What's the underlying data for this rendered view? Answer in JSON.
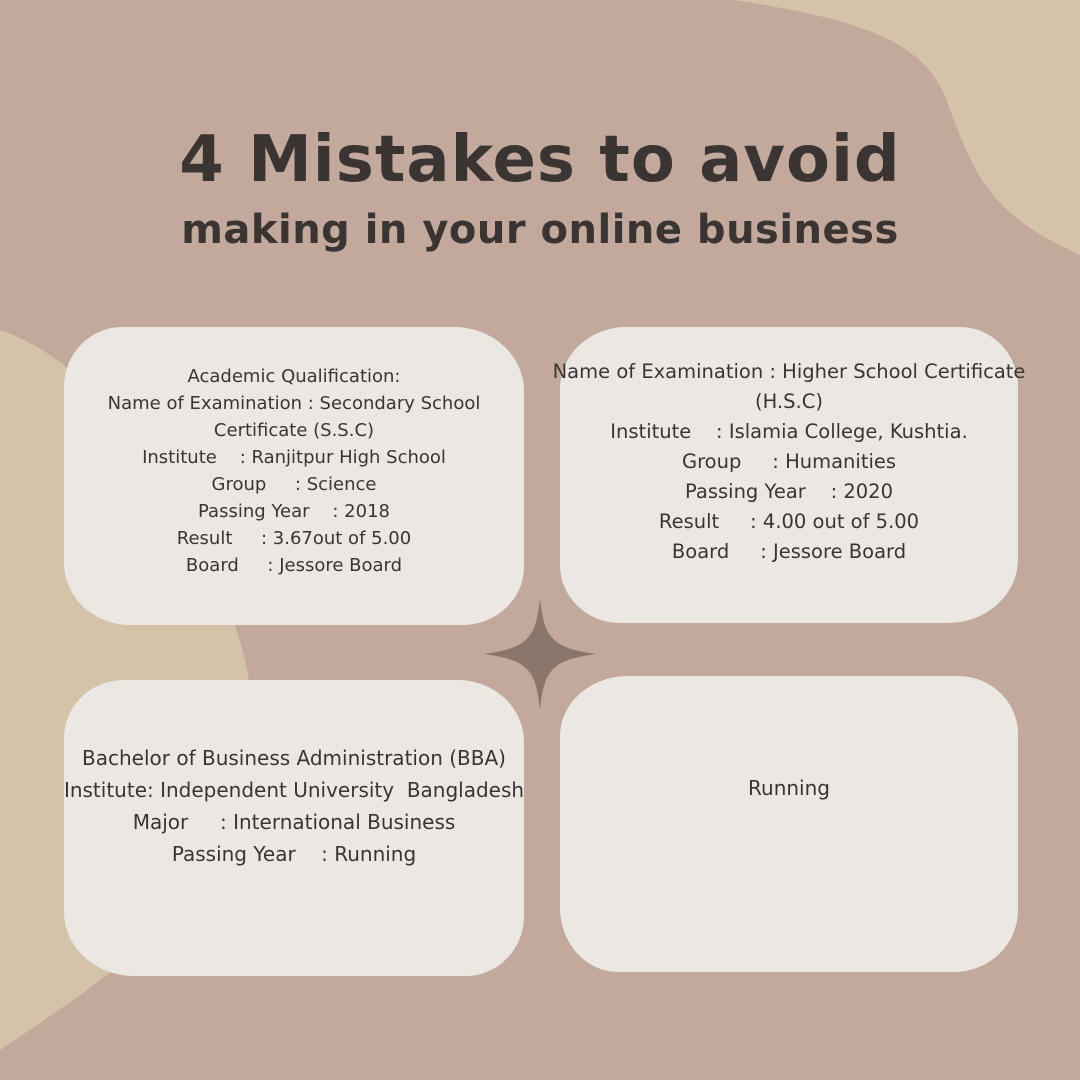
{
  "title": "4 Mistakes to avoid",
  "subtitle": "making in your online business",
  "cards": [
    {
      "lines": [
        "Academic Qualification:",
        "Name of Examination : Secondary School",
        "Certificate (S.S.C)",
        "Institute    : Ranjitpur High School",
        "Group     : Science",
        "Passing Year    : 2018",
        "Result     : 3.67out of 5.00",
        "Board     : Jessore Board"
      ]
    },
    {
      "lines": [
        "Name of Examination : Higher School Certificate",
        "(H.S.C)",
        "Institute    : Islamia College, Kushtia.",
        "Group     : Humanities",
        "Passing Year    : 2020",
        "Result     : 4.00 out of 5.00",
        "Board     : Jessore Board"
      ]
    },
    {
      "lines": [
        "Bachelor of Business Administration (BBA)",
        "Institute: Independent University  Bangladesh",
        "Major     : International Business",
        "Passing Year    : Running"
      ]
    },
    {
      "lines": [
        "Running"
      ]
    }
  ],
  "colors": {
    "background": "#c2a99c",
    "blob": "#d4c3a9",
    "card": "#ebe8e4",
    "text": "#3a3432",
    "sparkle": "#8a766a"
  }
}
